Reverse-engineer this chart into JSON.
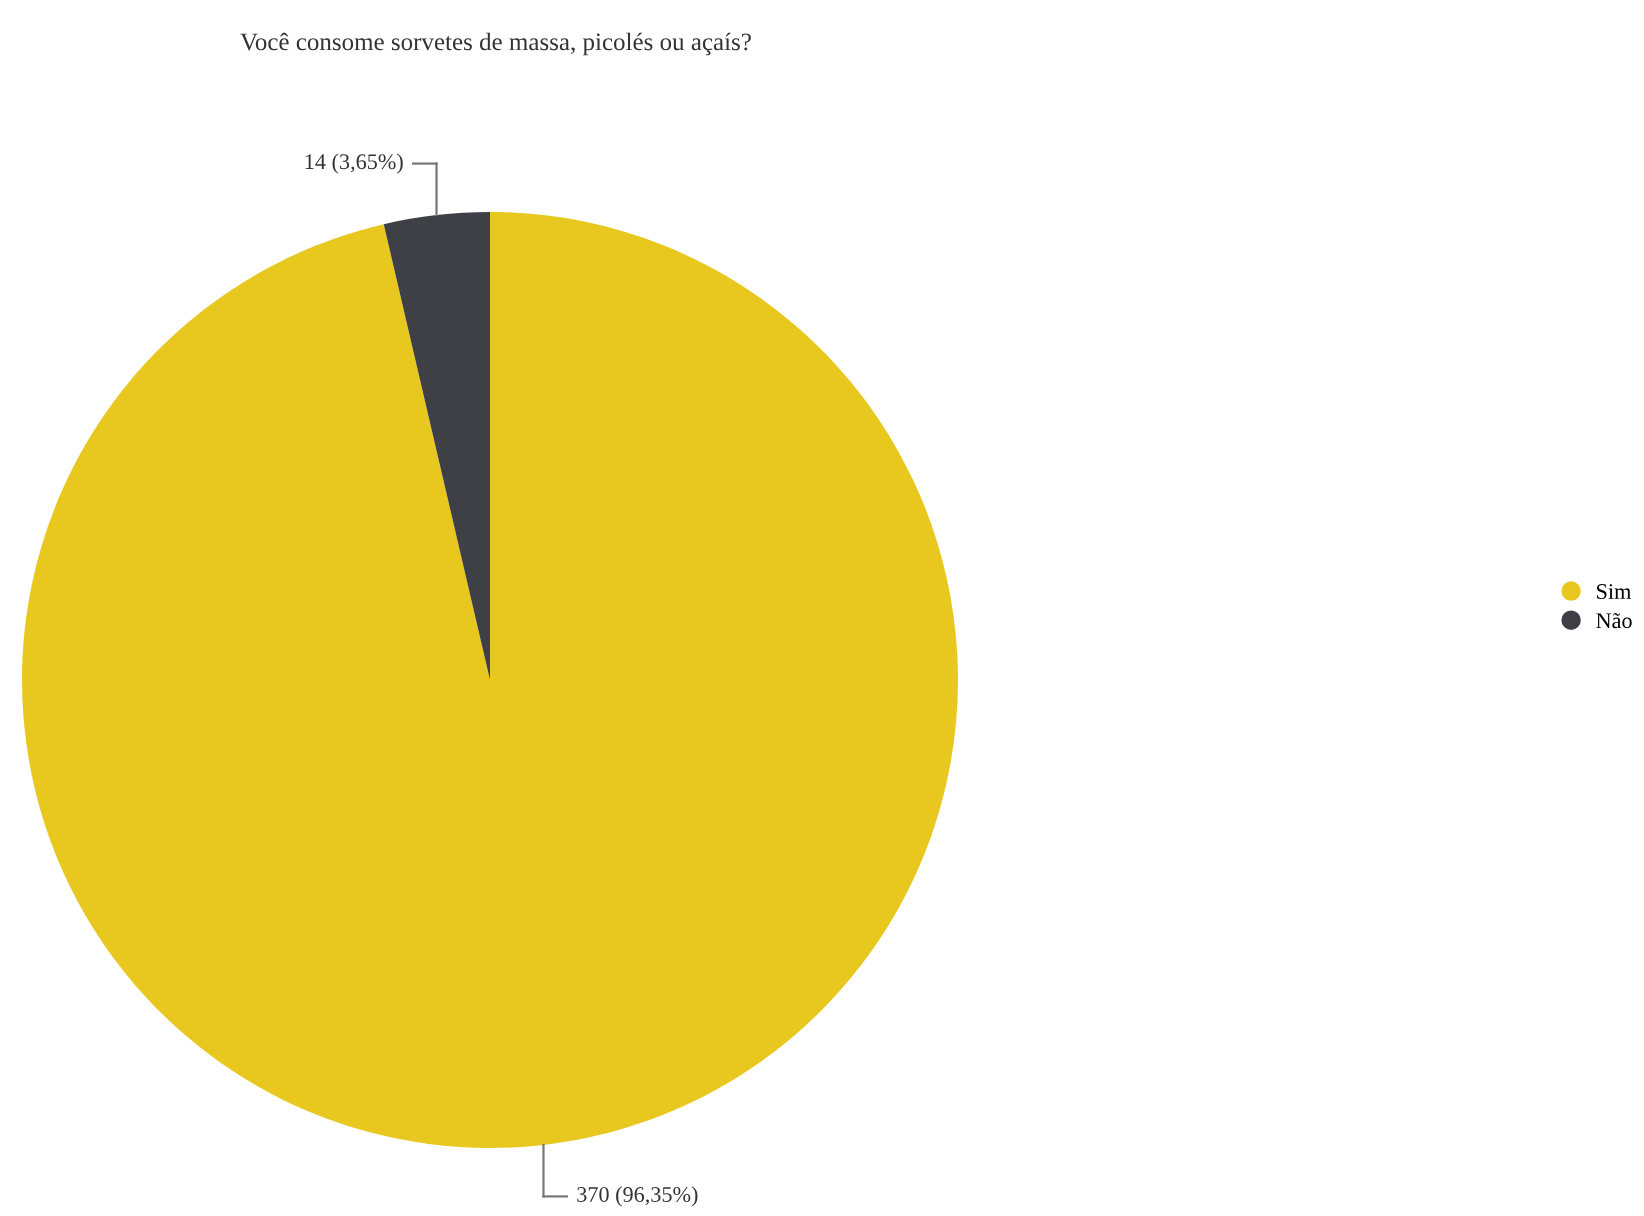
{
  "chart_data": {
    "type": "pie",
    "title": "Você consome sorvetes de massa, picolés ou açaís?",
    "categories": [
      "Sim",
      "Não"
    ],
    "values": [
      370,
      14
    ],
    "colors": [
      "#e8c81f",
      "#3f4046"
    ],
    "value_labels": [
      "370 (96,35%)",
      "14 (3,65%)"
    ],
    "legend": "right"
  }
}
